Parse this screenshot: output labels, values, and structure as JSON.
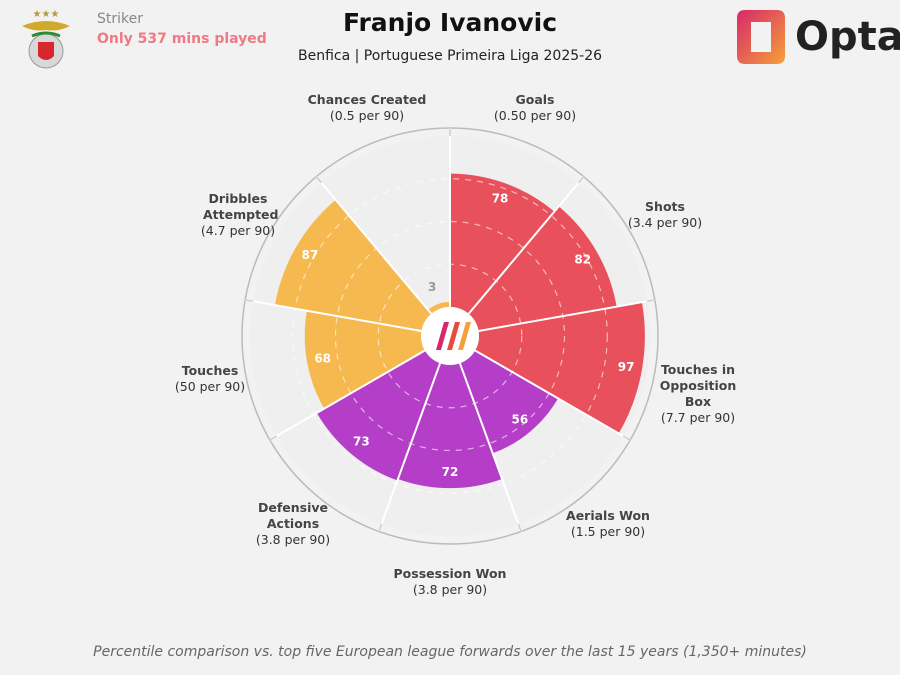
{
  "header": {
    "title": "Franjo Ivanovic",
    "subtitle": "Benfica | Portuguese Primeira Liga 2025-26",
    "role": "Striker",
    "minutes_note": "Only 537 mins played",
    "brand": "Opta"
  },
  "footnote": "Percentile comparison vs. top five European league forwards over the last 15 years (1,350+ minutes)",
  "colors": {
    "attacking": "#e8505b",
    "possession": "#f5b94f",
    "defending": "#b43ec8",
    "wedge_bg": "#efefef"
  },
  "chart_data": {
    "type": "pizza",
    "value_range": [
      0,
      100
    ],
    "metrics": [
      {
        "name": "Goals",
        "per90": "(0.50 per 90)",
        "percentile": 78,
        "group": "attacking"
      },
      {
        "name": "Shots",
        "per90": "(3.4 per 90)",
        "percentile": 82,
        "group": "attacking"
      },
      {
        "name": "Touches in Opposition Box",
        "per90": "(7.7 per 90)",
        "percentile": 97,
        "group": "attacking"
      },
      {
        "name": "Aerials Won",
        "per90": "(1.5 per 90)",
        "percentile": 56,
        "group": "defending"
      },
      {
        "name": "Possession Won",
        "per90": "(3.8 per 90)",
        "percentile": 72,
        "group": "defending"
      },
      {
        "name": "Defensive Actions",
        "per90": "(3.8 per 90)",
        "percentile": 73,
        "group": "defending"
      },
      {
        "name": "Touches",
        "per90": "(50 per 90)",
        "percentile": 68,
        "group": "possession"
      },
      {
        "name": "Dribbles Attempted",
        "per90": "(4.7 per 90)",
        "percentile": 87,
        "group": "possession"
      },
      {
        "name": "Chances Created",
        "per90": "(0.5 per 90)",
        "percentile": 3,
        "group": "possession"
      }
    ]
  }
}
